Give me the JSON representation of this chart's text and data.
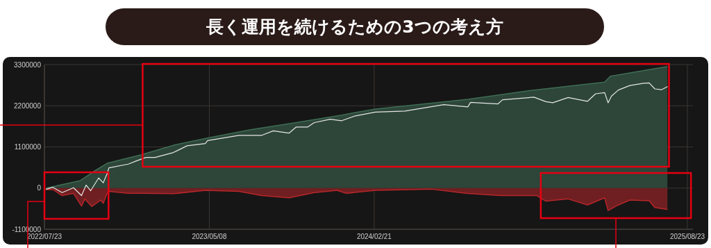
{
  "chart_data": {
    "type": "area",
    "title": "長く運用を続けるための3つの考え方",
    "xlim": [
      "2022-07-23",
      "2025-08-23"
    ],
    "xticks": [
      {
        "value": "2022-07-23",
        "label": "2022/07/23"
      },
      {
        "value": "2023-05-08",
        "label": "2023/05/08"
      },
      {
        "value": "2024-02-21",
        "label": "2024/02/21"
      },
      {
        "value": "2025-08-23",
        "label": "2025/08/23"
      }
    ],
    "ylim": [
      -1100000,
      3300000
    ],
    "yticks": [
      -1100000,
      0,
      1100000,
      2200000,
      3300000
    ],
    "grid": true,
    "series": [
      {
        "color": "#3f6e55",
        "x": [
          "2022-07-26",
          "2022-09-24",
          "2022-10-18",
          "2022-11-11",
          "2023-01-09",
          "2023-03-10",
          "2023-05-09",
          "2023-07-19",
          "2023-10-07",
          "2023-12-26",
          "2024-01-19",
          "2024-02-23",
          "2024-08-03",
          "2024-11-27",
          "2025-03-31",
          "2025-04-10",
          "2025-07-19"
        ],
        "values": [
          0,
          200000,
          450000,
          670000,
          890000,
          1160000,
          1350000,
          1560000,
          1750000,
          1950000,
          2020000,
          2110000,
          2370000,
          2620000,
          2830000,
          2990000,
          3250000
        ]
      },
      {
        "color": "#b8262a",
        "x": [
          "2022-07-26",
          "2022-08-07",
          "2022-08-23",
          "2022-09-12",
          "2022-09-26",
          "2022-10-02",
          "2022-10-14",
          "2022-10-30",
          "2022-11-03",
          "2022-11-09",
          "2022-11-13",
          "2022-12-17",
          "2023-01-09",
          "2023-03-06",
          "2023-05-01",
          "2023-06-29",
          "2023-08-08",
          "2023-09-25",
          "2023-11-08",
          "2023-12-18",
          "2024-01-03",
          "2024-02-23",
          "2024-06-01",
          "2024-07-31",
          "2024-09-29",
          "2024-12-02",
          "2024-12-18",
          "2025-01-26",
          "2025-03-01",
          "2025-03-31",
          "2025-04-06",
          "2025-04-20",
          "2025-05-14",
          "2025-06-17",
          "2025-06-27",
          "2025-07-19"
        ],
        "values": [
          -40000,
          -40000,
          -200000,
          -140000,
          -480000,
          -290000,
          -490000,
          -320000,
          -410000,
          -170000,
          -90000,
          -140000,
          -140000,
          -150000,
          -60000,
          -90000,
          -200000,
          -260000,
          -120000,
          -60000,
          -140000,
          -60000,
          -30000,
          -140000,
          -200000,
          -200000,
          -350000,
          -290000,
          -450000,
          -260000,
          -600000,
          -480000,
          -320000,
          -340000,
          -520000,
          -570000
        ]
      },
      {
        "type": "line",
        "color": "#e6e6e6",
        "x": [
          "2022-07-26",
          "2022-08-07",
          "2022-08-23",
          "2022-09-12",
          "2022-09-26",
          "2022-10-04",
          "2022-10-12",
          "2022-10-26",
          "2022-11-03",
          "2022-11-10",
          "2022-11-13",
          "2022-12-17",
          "2023-01-01",
          "2023-01-17",
          "2023-02-02",
          "2023-03-06",
          "2023-03-30",
          "2023-05-01",
          "2023-05-05",
          "2023-06-29",
          "2023-08-08",
          "2023-08-28",
          "2023-09-25",
          "2023-10-07",
          "2023-10-27",
          "2023-11-08",
          "2023-12-06",
          "2023-12-26",
          "2024-01-19",
          "2024-02-23",
          "2024-04-15",
          "2024-06-22",
          "2024-08-03",
          "2024-08-08",
          "2024-09-25",
          "2024-10-03",
          "2024-11-27",
          "2024-12-18",
          "2024-12-30",
          "2025-01-26",
          "2025-03-01",
          "2025-03-15",
          "2025-03-31",
          "2025-04-06",
          "2025-04-12",
          "2025-04-24",
          "2025-05-14",
          "2025-06-07",
          "2025-06-17",
          "2025-06-27",
          "2025-07-09",
          "2025-07-19"
        ],
        "values": [
          -30000,
          20000,
          -120000,
          10000,
          -200000,
          80000,
          -70000,
          270000,
          140000,
          390000,
          540000,
          640000,
          730000,
          820000,
          820000,
          950000,
          1130000,
          1190000,
          1270000,
          1410000,
          1410000,
          1530000,
          1470000,
          1630000,
          1630000,
          1750000,
          1840000,
          1800000,
          1930000,
          2030000,
          2060000,
          2230000,
          2170000,
          2290000,
          2250000,
          2360000,
          2430000,
          2310000,
          2280000,
          2420000,
          2320000,
          2520000,
          2550000,
          2280000,
          2460000,
          2620000,
          2740000,
          2800000,
          2810000,
          2650000,
          2630000,
          2710000
        ]
      }
    ]
  }
}
